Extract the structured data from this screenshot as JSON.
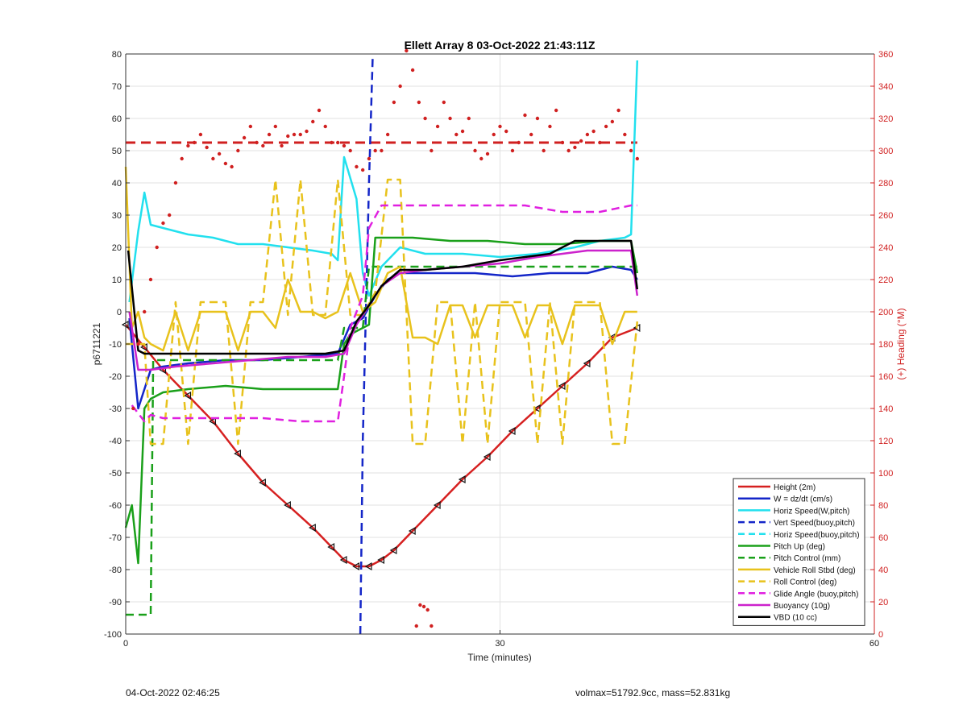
{
  "chart_data": {
    "type": "line",
    "title": "Ellett Array 8 03-Oct-2022 21:43:11Z",
    "xlabel": "Time (minutes)",
    "ylabel_left": "p6711221",
    "ylabel_right": "(+) Heading (°M)",
    "xlim": [
      0,
      60
    ],
    "ylim_left": [
      -100,
      80
    ],
    "ylim_right": [
      0,
      360
    ],
    "x_ticks": [
      "0",
      "30",
      "60"
    ],
    "y_ticks_left": [
      "-100",
      "-90",
      "-80",
      "-70",
      "-60",
      "-50",
      "-40",
      "-30",
      "-20",
      "-10",
      "0",
      "10",
      "20",
      "30",
      "40",
      "50",
      "60",
      "70",
      "80"
    ],
    "y_ticks_right": [
      "0",
      "20",
      "40",
      "60",
      "80",
      "100",
      "120",
      "140",
      "160",
      "180",
      "200",
      "220",
      "240",
      "260",
      "280",
      "300",
      "320",
      "340",
      "360"
    ],
    "grid": true,
    "legend_position": "bottom-right",
    "legend": [
      {
        "label": "Height (2m)",
        "color": "#d62020",
        "dash": "solid"
      },
      {
        "label": "W = dz/dt (cm/s)",
        "color": "#1426c8",
        "dash": "solid"
      },
      {
        "label": "Horiz Speed(W,pitch)",
        "color": "#22e0ee",
        "dash": "solid"
      },
      {
        "label": "Vert Speed(buoy,pitch)",
        "color": "#1426c8",
        "dash": "dashed"
      },
      {
        "label": "Horiz Speed(buoy,pitch)",
        "color": "#22e0ee",
        "dash": "dashed"
      },
      {
        "label": "Pitch Up (deg)",
        "color": "#1aa01a",
        "dash": "solid"
      },
      {
        "label": "Pitch Control (mm)",
        "color": "#1aa01a",
        "dash": "dashed"
      },
      {
        "label": "Vehicle Roll Stbd (deg)",
        "color": "#e8c21c",
        "dash": "solid"
      },
      {
        "label": "Roll Control (deg)",
        "color": "#e8c21c",
        "dash": "dashed"
      },
      {
        "label": "Glide Angle (buoy,pitch)",
        "color": "#e020e0",
        "dash": "dashed"
      },
      {
        "label": "Buoyancy (10g)",
        "color": "#cc22cc",
        "dash": "solid"
      },
      {
        "label": "VBD (10 cc)",
        "color": "#000000",
        "dash": "solid"
      }
    ],
    "heading_reference_deg": 305,
    "series": [
      {
        "name": "Height (2m)",
        "color": "#d62020",
        "dash": "solid",
        "axis": "left",
        "markers": "triangle",
        "x": [
          0,
          1.5,
          3,
          5,
          7,
          9,
          11,
          13,
          15,
          16.5,
          17.5,
          18.5,
          19.5,
          20.5,
          21.5,
          23,
          25,
          27,
          29,
          31,
          33,
          35,
          37,
          39,
          41
        ],
        "y": [
          -4,
          -11,
          -18,
          -26,
          -34,
          -44,
          -53,
          -60,
          -67,
          -73,
          -77,
          -79,
          -79,
          -77,
          -74,
          -68,
          -60,
          -52,
          -45,
          -37,
          -30,
          -23,
          -16,
          -8,
          -5
        ]
      },
      {
        "name": "W = dz/dt (cm/s)",
        "color": "#1426c8",
        "dash": "solid",
        "axis": "left",
        "x": [
          0.3,
          1,
          2,
          3,
          5,
          8,
          11,
          14,
          17,
          18,
          19,
          20,
          21,
          22,
          23,
          25,
          28,
          31,
          34,
          37,
          39,
          40.5,
          41
        ],
        "y": [
          -2,
          -30,
          -18,
          -17,
          -16,
          -15,
          -15,
          -14,
          -13,
          -4,
          -2,
          5,
          10,
          12,
          12,
          12,
          12,
          11,
          12,
          12,
          14,
          13,
          10
        ]
      },
      {
        "name": "Horiz Speed(W,pitch)",
        "color": "#22e0ee",
        "dash": "solid",
        "axis": "left",
        "x": [
          0.3,
          1,
          1.5,
          2,
          3,
          5,
          7,
          9,
          11,
          13,
          15,
          16.5,
          17,
          17.5,
          18.5,
          19,
          19.5,
          20.5,
          22,
          24,
          27,
          30,
          33,
          36,
          38,
          40,
          40.5,
          41
        ],
        "y": [
          3,
          25,
          37,
          27,
          26,
          24,
          23,
          21,
          21,
          20,
          19,
          18,
          16,
          48,
          35,
          12,
          5,
          14,
          20,
          18,
          18,
          17,
          18,
          20,
          22,
          23,
          24,
          78
        ]
      },
      {
        "name": "Vert Speed(buoy,pitch)",
        "color": "#1426c8",
        "dash": "dashed",
        "axis": "left",
        "x": [
          18.8,
          19,
          19.5,
          19.8
        ],
        "y": [
          -100,
          -40,
          40,
          80
        ]
      },
      {
        "name": "Pitch Up (deg)",
        "color": "#1aa01a",
        "dash": "solid",
        "axis": "left",
        "x": [
          0,
          0.5,
          1,
          1.5,
          2,
          3,
          5,
          8,
          11,
          14,
          17,
          17.5,
          18,
          19,
          19.5,
          20,
          23,
          26,
          29,
          32,
          35,
          38,
          40.5,
          41
        ],
        "y": [
          -67,
          -60,
          -78,
          -30,
          -27,
          -25,
          -24,
          -23,
          -24,
          -24,
          -24,
          -10,
          -7,
          -5,
          -4,
          23,
          23,
          22,
          22,
          21,
          21,
          22,
          22,
          12
        ]
      },
      {
        "name": "Pitch Control (mm)",
        "color": "#1aa01a",
        "dash": "dashed",
        "axis": "left",
        "x": [
          0,
          2,
          2.2,
          17,
          17.5,
          19,
          19.5,
          22,
          41
        ],
        "y": [
          -94,
          -94,
          -15,
          -15,
          -5,
          -5,
          14,
          14,
          14
        ]
      },
      {
        "name": "Vehicle Roll Stbd (deg)",
        "color": "#e8c21c",
        "dash": "solid",
        "axis": "left",
        "x": [
          0,
          0.5,
          1,
          1.5,
          2,
          3,
          4,
          5,
          6,
          7,
          8,
          9,
          10,
          11,
          12,
          13,
          14,
          15,
          16,
          17,
          18,
          19,
          20,
          21,
          22,
          23,
          24,
          25,
          26,
          27,
          28,
          29,
          30,
          31,
          32,
          33,
          34,
          35,
          36,
          37,
          38,
          39,
          40,
          41
        ],
        "y": [
          45,
          -5,
          0,
          -8,
          -10,
          -12,
          0,
          -12,
          0,
          0,
          0,
          -12,
          0,
          0,
          -5,
          10,
          0,
          0,
          -2,
          0,
          12,
          0,
          3,
          12,
          14,
          -8,
          -8,
          -10,
          2,
          2,
          -8,
          2,
          2,
          2,
          -8,
          2,
          2,
          -10,
          2,
          2,
          2,
          -10,
          0,
          0
        ]
      },
      {
        "name": "Roll Control (deg)",
        "color": "#e8c21c",
        "dash": "dashed",
        "axis": "left",
        "x": [
          0,
          1.5,
          2,
          3,
          4,
          5,
          6,
          7,
          8,
          9,
          10,
          11,
          12,
          13,
          14,
          15,
          16,
          17,
          18,
          19,
          20,
          21,
          22,
          23,
          24,
          25,
          26,
          27,
          28,
          29,
          30,
          31,
          32,
          33,
          34,
          35,
          36,
          37,
          38,
          39,
          40,
          41
        ],
        "y": [
          -10,
          -10,
          -41,
          -41,
          3,
          -41,
          3,
          3,
          3,
          -41,
          3,
          3,
          41,
          -1,
          41,
          -1,
          -1,
          41,
          -1,
          -1,
          6,
          41,
          41,
          -41,
          -41,
          3,
          3,
          -41,
          3,
          -41,
          3,
          3,
          3,
          -41,
          3,
          -41,
          3,
          3,
          3,
          -41,
          -41,
          -3
        ]
      },
      {
        "name": "Glide Angle (buoy,pitch)",
        "color": "#e020e0",
        "dash": "dashed",
        "axis": "left",
        "x": [
          0.5,
          1.5,
          2,
          3,
          5,
          8,
          11,
          14,
          17,
          17.5,
          18,
          19,
          19.5,
          20.5,
          23,
          26,
          29,
          32,
          35,
          38,
          40.5,
          41
        ],
        "y": [
          -29,
          -34,
          -32,
          -33,
          -33,
          -33,
          -33,
          -34,
          -34,
          -20,
          -5,
          5,
          26,
          33,
          33,
          33,
          33,
          33,
          31,
          31,
          33,
          33
        ]
      },
      {
        "name": "Buoyancy (10g)",
        "color": "#cc22cc",
        "dash": "solid",
        "axis": "left",
        "x": [
          0.3,
          1,
          2,
          4,
          7,
          10,
          13,
          16,
          17.5,
          18.5,
          19.5,
          20.5,
          22,
          24,
          27,
          30,
          33,
          35,
          37,
          40.5,
          41
        ],
        "y": [
          0,
          -18,
          -18,
          -17,
          -16,
          -15,
          -14,
          -14,
          -13,
          -4,
          2,
          8,
          12,
          13,
          14,
          15,
          17,
          18,
          19,
          19,
          5
        ]
      },
      {
        "name": "VBD (10 cc)",
        "color": "#000000",
        "dash": "solid",
        "axis": "left",
        "x": [
          0.2,
          1,
          1.5,
          2,
          4,
          7,
          10,
          13,
          16,
          17.5,
          18.5,
          19.5,
          20.5,
          22,
          24,
          27,
          30,
          32,
          34,
          36,
          38,
          40.5,
          41
        ],
        "y": [
          19,
          -12,
          -13,
          -13,
          -13,
          -13,
          -13,
          -13,
          -13,
          -12,
          -3,
          2,
          8,
          13,
          13,
          14,
          16,
          17,
          18,
          22,
          22,
          22,
          7
        ]
      }
    ],
    "heading_points": {
      "name": "Heading",
      "color": "#d02020",
      "axis": "right",
      "marker": "dot",
      "x": [
        0.6,
        1,
        1.5,
        2,
        2.5,
        3,
        3.5,
        4,
        4.5,
        5,
        5.5,
        6,
        6.5,
        7,
        7.5,
        8,
        8.5,
        9,
        9.5,
        10,
        10.5,
        11,
        11.5,
        12,
        12.5,
        13,
        13.5,
        14,
        14.5,
        15,
        15.5,
        16,
        16.5,
        17,
        17.5,
        18,
        18.5,
        19,
        19.5,
        20,
        20.5,
        21,
        21.5,
        22,
        22.5,
        23,
        23.5,
        24,
        24.5,
        25,
        25.5,
        26,
        26.5,
        27,
        27.5,
        28,
        28.5,
        29,
        29.5,
        30,
        30.5,
        31,
        31.5,
        32,
        32.5,
        33,
        33.5,
        34,
        34.5,
        35,
        35.5,
        36,
        36.5,
        37,
        37.5,
        38,
        38.5,
        39,
        39.5,
        40,
        40.5,
        41
      ],
      "y": [
        140,
        180,
        200,
        220,
        240,
        255,
        260,
        280,
        295,
        303,
        305,
        310,
        302,
        295,
        298,
        292,
        290,
        300,
        308,
        315,
        305,
        303,
        310,
        315,
        303,
        309,
        310,
        310,
        312,
        318,
        325,
        315,
        305,
        305,
        303,
        300,
        290,
        288,
        295,
        300,
        300,
        310,
        330,
        340,
        362,
        350,
        330,
        320,
        300,
        315,
        330,
        320,
        310,
        312,
        320,
        300,
        295,
        298,
        310,
        315,
        312,
        300,
        305,
        322,
        310,
        320,
        300,
        315,
        325,
        305,
        300,
        302,
        306,
        310,
        312,
        305,
        315,
        318,
        325,
        310,
        300,
        295
      ],
      "outliers_x": [
        23.3,
        23.6,
        23.9,
        24.2,
        24.5
      ],
      "outliers_y": [
        5,
        18,
        17,
        15,
        5
      ]
    }
  },
  "footer": {
    "left": "04-Oct-2022 02:46:25",
    "right": "volmax=51792.9cc, mass=52.831kg"
  }
}
